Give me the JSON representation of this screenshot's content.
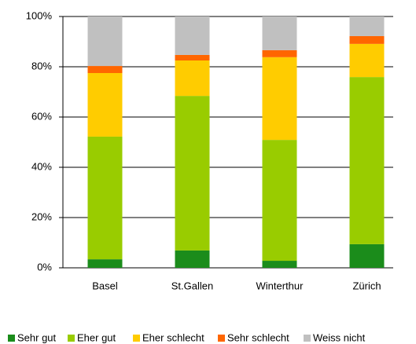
{
  "chart_data": {
    "type": "stacked_bar",
    "categories": [
      "Basel",
      "St.Gallen",
      "Winterthur",
      "Zürich"
    ],
    "series": [
      {
        "name": "Sehr gut",
        "color": "#1b8c1b",
        "values": [
          3.4,
          6.9,
          2.8,
          9.4
        ]
      },
      {
        "name": "Eher gut",
        "color": "#99cc00",
        "values": [
          48.8,
          61.5,
          48.1,
          66.5
        ]
      },
      {
        "name": "Eher schlecht",
        "color": "#ffcc00",
        "values": [
          25.3,
          14.1,
          32.9,
          13.2
        ]
      },
      {
        "name": "Sehr schlecht",
        "color": "#ff6600",
        "values": [
          2.8,
          2.2,
          2.8,
          3.1
        ]
      },
      {
        "name": "Weiss nicht",
        "color": "#c0c0c0",
        "values": [
          19.7,
          15.3,
          13.4,
          7.8
        ]
      }
    ],
    "ylim": [
      0,
      100
    ],
    "yticks": [
      {
        "value": 0,
        "label": "0%"
      },
      {
        "value": 20,
        "label": "20%"
      },
      {
        "value": 40,
        "label": "40%"
      },
      {
        "value": 60,
        "label": "60%"
      },
      {
        "value": 80,
        "label": "80%"
      },
      {
        "value": 100,
        "label": "100%"
      }
    ],
    "grid": true,
    "legend": "bottom"
  }
}
